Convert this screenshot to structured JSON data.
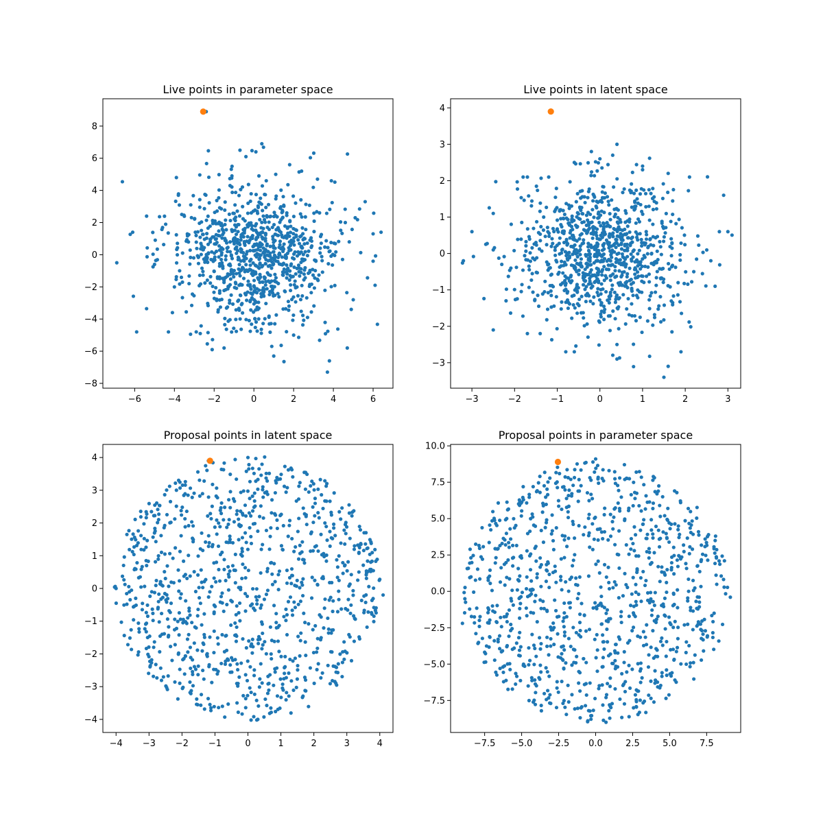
{
  "chart_data": [
    {
      "type": "scatter",
      "title": "Live points in parameter space",
      "xlabel": "",
      "ylabel": "",
      "xlim": [
        -7.6,
        7.0
      ],
      "ylim": [
        -8.3,
        9.7
      ],
      "xticks": [
        -6,
        -4,
        -2,
        0,
        2,
        4,
        6
      ],
      "yticks": [
        -8,
        -6,
        -4,
        -2,
        0,
        2,
        4,
        6,
        8
      ],
      "grid": false,
      "legend": "none",
      "series": [
        {
          "color": "#1f77b4",
          "marker_size": "small",
          "distribution": "gaussian",
          "count": 1000,
          "center": [
            0.0,
            0.0
          ],
          "spread": [
            2.0,
            2.2
          ],
          "points": [
            [
              -6.9,
              -0.5
            ],
            [
              -5.9,
              -4.8
            ],
            [
              -6.1,
              1.4
            ],
            [
              -5.4,
              2.4
            ],
            [
              -5.0,
              -0.6
            ],
            [
              -4.3,
              -4.8
            ],
            [
              -3.9,
              4.8
            ],
            [
              -4.1,
              -3.6
            ],
            [
              -3.8,
              3.7
            ],
            [
              -4.0,
              -2.0
            ],
            [
              -2.9,
              -4.8
            ],
            [
              -2.1,
              -5.9
            ],
            [
              -1.5,
              -5.8
            ],
            [
              -1.2,
              4.3
            ],
            [
              -1.1,
              5.5
            ],
            [
              -0.7,
              6.5
            ],
            [
              -0.4,
              6.1
            ],
            [
              0.1,
              6.4
            ],
            [
              0.4,
              6.9
            ],
            [
              0.2,
              -3.4
            ],
            [
              0.9,
              -5.7
            ],
            [
              1.0,
              -6.3
            ],
            [
              1.1,
              5.0
            ],
            [
              1.8,
              5.6
            ],
            [
              2.4,
              5.2
            ],
            [
              3.2,
              4.7
            ],
            [
              3.9,
              4.6
            ],
            [
              4.7,
              -5.8
            ],
            [
              3.8,
              -6.6
            ],
            [
              3.7,
              -7.3
            ],
            [
              4.6,
              2.0
            ],
            [
              5.1,
              2.3
            ],
            [
              5.6,
              3.3
            ],
            [
              6.0,
              1.3
            ],
            [
              6.4,
              1.4
            ],
            [
              6.0,
              -0.4
            ],
            [
              6.1,
              -1.9
            ],
            [
              5.0,
              -2.8
            ],
            [
              4.9,
              -3.4
            ],
            [
              4.8,
              0.8
            ],
            [
              2.7,
              -3.9
            ],
            [
              2.0,
              -5.0
            ],
            [
              -2.7,
              -4.9
            ],
            [
              -2.4,
              8.9
            ]
          ]
        },
        {
          "color": "#ff7f0e",
          "marker_size": "large",
          "points": [
            [
              -2.55,
              8.9
            ]
          ]
        }
      ]
    },
    {
      "type": "scatter",
      "title": "Live points in latent space",
      "xlabel": "",
      "ylabel": "",
      "xlim": [
        -3.5,
        3.3
      ],
      "ylim": [
        -3.7,
        4.25
      ],
      "xticks": [
        -3,
        -2,
        -1,
        0,
        1,
        2,
        3
      ],
      "yticks": [
        -3,
        -2,
        -1,
        0,
        1,
        2,
        3,
        4
      ],
      "grid": false,
      "legend": "none",
      "series": [
        {
          "color": "#1f77b4",
          "marker_size": "small",
          "distribution": "gaussian",
          "count": 1000,
          "center": [
            0.0,
            0.0
          ],
          "spread": [
            0.95,
            0.95
          ],
          "points": [
            [
              -3.2,
              -0.2
            ],
            [
              -3.0,
              0.6
            ],
            [
              -2.5,
              1.1
            ],
            [
              -2.5,
              -2.1
            ],
            [
              -2.5,
              0.1
            ],
            [
              -2.3,
              -0.3
            ],
            [
              -1.8,
              2.1
            ],
            [
              -1.7,
              2.1
            ],
            [
              -1.2,
              2.1
            ],
            [
              -0.6,
              2.5
            ],
            [
              -0.2,
              2.8
            ],
            [
              0.0,
              2.6
            ],
            [
              0.3,
              2.7
            ],
            [
              0.4,
              3.0
            ],
            [
              1.0,
              2.4
            ],
            [
              1.0,
              2.3
            ],
            [
              1.6,
              2.2
            ],
            [
              2.1,
              2.1
            ],
            [
              2.9,
              1.6
            ],
            [
              3.0,
              0.6
            ],
            [
              2.8,
              0.6
            ],
            [
              2.7,
              -0.9
            ],
            [
              2.6,
              -0.2
            ],
            [
              2.2,
              -0.5
            ],
            [
              1.9,
              -2.7
            ],
            [
              1.6,
              -3.1
            ],
            [
              1.5,
              -3.4
            ],
            [
              0.4,
              -2.9
            ],
            [
              0.4,
              -2.5
            ],
            [
              -0.6,
              -2.7
            ],
            [
              -0.8,
              -2.7
            ],
            [
              -1.4,
              -2.2
            ],
            [
              -1.7,
              -2.2
            ],
            [
              -2.2,
              -1.3
            ],
            [
              -1.15,
              3.9
            ]
          ]
        },
        {
          "color": "#ff7f0e",
          "marker_size": "large",
          "points": [
            [
              -1.15,
              3.9
            ]
          ]
        }
      ]
    },
    {
      "type": "scatter",
      "title": "Proposal points in latent space",
      "xlabel": "",
      "ylabel": "",
      "xlim": [
        -4.4,
        4.4
      ],
      "ylim": [
        -4.4,
        4.4
      ],
      "xticks": [
        -4,
        -3,
        -2,
        -1,
        0,
        1,
        2,
        3,
        4
      ],
      "yticks": [
        -4,
        -3,
        -2,
        -1,
        0,
        1,
        2,
        3,
        4
      ],
      "grid": false,
      "legend": "none",
      "series": [
        {
          "color": "#1f77b4",
          "marker_size": "small",
          "distribution": "uniform-disc",
          "count": 1000,
          "center": [
            0.0,
            0.0
          ],
          "radius": [
            4.05,
            4.05
          ],
          "points": [
            [
              -4.0,
              0.0
            ],
            [
              4.1,
              -0.2
            ],
            [
              0.0,
              4.0
            ],
            [
              0.3,
              -4.0
            ],
            [
              -1.2,
              3.9
            ]
          ]
        },
        {
          "color": "#ff7f0e",
          "marker_size": "large",
          "points": [
            [
              -1.15,
              3.9
            ]
          ]
        }
      ]
    },
    {
      "type": "scatter",
      "title": "Proposal points in parameter space",
      "xlabel": "",
      "ylabel": "",
      "xlim": [
        -9.8,
        9.8
      ],
      "ylim": [
        -9.7,
        10.1
      ],
      "xticks": [
        -7.5,
        -5.0,
        -2.5,
        0.0,
        2.5,
        5.0,
        7.5
      ],
      "yticks": [
        -7.5,
        -5.0,
        -2.5,
        0.0,
        2.5,
        5.0,
        7.5,
        10.0
      ],
      "grid": false,
      "legend": "none",
      "series": [
        {
          "color": "#1f77b4",
          "marker_size": "small",
          "distribution": "uniform-disc",
          "count": 1000,
          "center": [
            0.0,
            0.0
          ],
          "radius": [
            9.0,
            9.0
          ],
          "points": [
            [
              -9.0,
              -2.2
            ],
            [
              9.1,
              -0.4
            ],
            [
              0.0,
              9.1
            ],
            [
              0.7,
              -9.0
            ],
            [
              -2.6,
              8.9
            ]
          ]
        },
        {
          "color": "#ff7f0e",
          "marker_size": "large",
          "points": [
            [
              -2.55,
              8.9
            ]
          ]
        }
      ]
    }
  ]
}
